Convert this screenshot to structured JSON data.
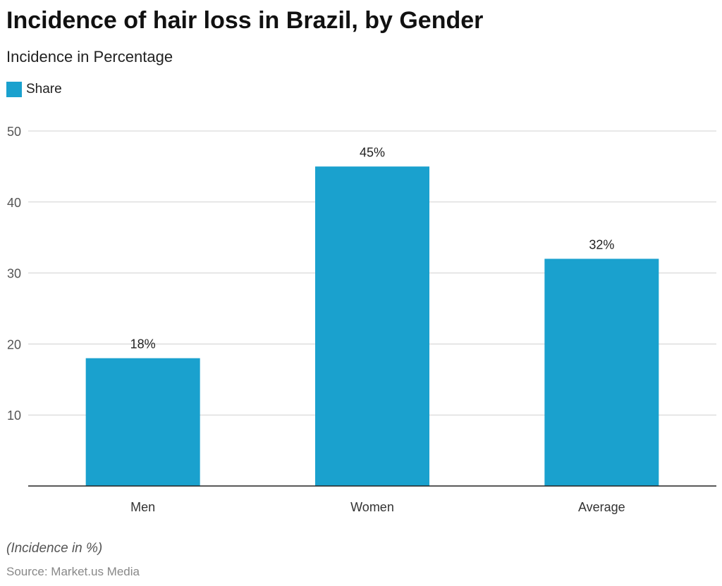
{
  "chart_data": {
    "type": "bar",
    "title": "Incidence of hair loss in Brazil, by Gender",
    "subtitle": "Incidence in Percentage",
    "categories": [
      "Men",
      "Women",
      "Average"
    ],
    "series": [
      {
        "name": "Share",
        "values": [
          18,
          45,
          32
        ],
        "color": "#1aa1ce"
      }
    ],
    "data_labels": [
      "18%",
      "45%",
      "32%"
    ],
    "yticks": [
      10,
      20,
      30,
      40,
      50
    ],
    "ylim": [
      0,
      50
    ],
    "grid": true,
    "legend": "top-left",
    "xlabel": "",
    "ylabel": ""
  },
  "footer": {
    "note": "(Incidence in %)",
    "source": "Source: Market.us Media"
  }
}
